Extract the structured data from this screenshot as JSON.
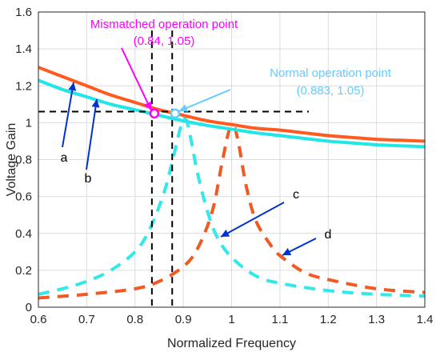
{
  "colors": {
    "curve_a": "#ff5a1f",
    "curve_b": "#22e5e5",
    "curve_c": "#33e8e8",
    "curve_d": "#f15a22",
    "mismatch": "#ff00ff",
    "normal": "#66ccff",
    "pointer_arrow": "#0033cc",
    "grid": "#dcdcdc",
    "guide": "#000000"
  },
  "chart_data": {
    "type": "line",
    "title": "",
    "xlabel": "Normalized Frequency",
    "ylabel": "Voltage Gain",
    "xlim": [
      0.6,
      1.4
    ],
    "ylim": [
      0,
      1.6
    ],
    "xticks": [
      0.6,
      0.7,
      0.8,
      0.9,
      1.0,
      1.1,
      1.2,
      1.3,
      1.4
    ],
    "xtick_labels": [
      "0.6",
      "0.7",
      "0.8",
      "0.9",
      "1",
      "1.1",
      "1.2",
      "1.3",
      "1.4"
    ],
    "yticks": [
      0,
      0.2,
      0.4,
      0.6,
      0.8,
      1.0,
      1.2,
      1.4,
      1.6
    ],
    "ytick_labels": [
      "0",
      "0.2",
      "0.4",
      "0.6",
      "0.8",
      "1",
      "1.2",
      "1.4",
      "1.6"
    ],
    "grid": true,
    "series": [
      {
        "name": "a",
        "style": "solid",
        "x": [
          0.6,
          0.65,
          0.7,
          0.75,
          0.8,
          0.85,
          0.9,
          0.95,
          1.0,
          1.05,
          1.1,
          1.15,
          1.2,
          1.25,
          1.3,
          1.35,
          1.4
        ],
        "values": [
          1.3,
          1.25,
          1.2,
          1.15,
          1.11,
          1.07,
          1.04,
          1.01,
          0.99,
          0.97,
          0.96,
          0.945,
          0.93,
          0.92,
          0.91,
          0.905,
          0.9
        ]
      },
      {
        "name": "b",
        "style": "solid",
        "x": [
          0.6,
          0.65,
          0.7,
          0.75,
          0.8,
          0.85,
          0.9,
          0.95,
          1.0,
          1.05,
          1.1,
          1.15,
          1.2,
          1.25,
          1.3,
          1.35,
          1.4
        ],
        "values": [
          1.23,
          1.18,
          1.14,
          1.1,
          1.07,
          1.04,
          1.01,
          0.985,
          0.965,
          0.945,
          0.93,
          0.915,
          0.9,
          0.89,
          0.88,
          0.875,
          0.87
        ]
      },
      {
        "name": "c",
        "style": "dashed",
        "x": [
          0.6,
          0.65,
          0.7,
          0.75,
          0.8,
          0.83,
          0.86,
          0.88,
          0.895,
          0.905,
          0.915,
          0.93,
          0.95,
          0.97,
          1.0,
          1.05,
          1.1,
          1.2,
          1.3,
          1.4
        ],
        "values": [
          0.07,
          0.1,
          0.14,
          0.2,
          0.3,
          0.42,
          0.62,
          0.82,
          0.98,
          1.02,
          0.92,
          0.72,
          0.52,
          0.38,
          0.27,
          0.17,
          0.13,
          0.09,
          0.07,
          0.06
        ]
      },
      {
        "name": "d",
        "style": "dashed",
        "x": [
          0.6,
          0.7,
          0.8,
          0.85,
          0.9,
          0.93,
          0.96,
          0.98,
          0.995,
          1.005,
          1.015,
          1.03,
          1.05,
          1.08,
          1.1,
          1.15,
          1.2,
          1.3,
          1.4
        ],
        "values": [
          0.05,
          0.07,
          0.1,
          0.14,
          0.22,
          0.32,
          0.52,
          0.78,
          0.96,
          0.98,
          0.88,
          0.66,
          0.47,
          0.34,
          0.28,
          0.19,
          0.15,
          0.1,
          0.08
        ]
      }
    ],
    "points": [
      {
        "name": "Mismatched operation point",
        "x": 0.84,
        "y": 1.05,
        "label": "Mismatched operation point",
        "coords": "(0.84, 1.05)"
      },
      {
        "name": "Normal operation point",
        "x": 0.883,
        "y": 1.05,
        "label": "Normal operation point",
        "coords": "(0.883, 1.05)"
      }
    ],
    "guides": {
      "h_y": 1.06,
      "h_x_range": [
        0.6,
        1.16
      ],
      "v_x": [
        0.835,
        0.877
      ]
    },
    "curve_labels": [
      "a",
      "b",
      "c",
      "d"
    ]
  }
}
